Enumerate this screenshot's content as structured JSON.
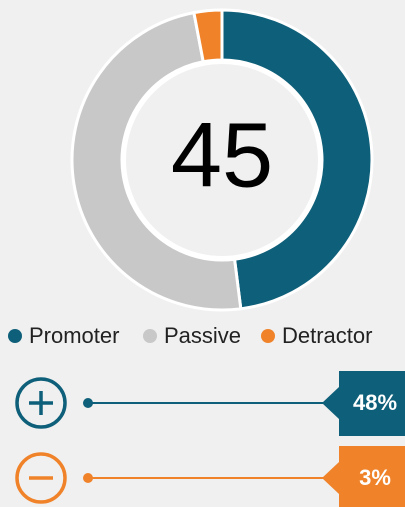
{
  "chart_data": {
    "type": "donut",
    "categories": [
      "Promoter",
      "Passive",
      "Detractor"
    ],
    "values": [
      48,
      49,
      3
    ],
    "value_labels": [
      "48%",
      null,
      "3%"
    ],
    "colors": [
      "#0e5f79",
      "#c8c8c8",
      "#f0832a"
    ],
    "score": 45,
    "legend": true
  }
}
